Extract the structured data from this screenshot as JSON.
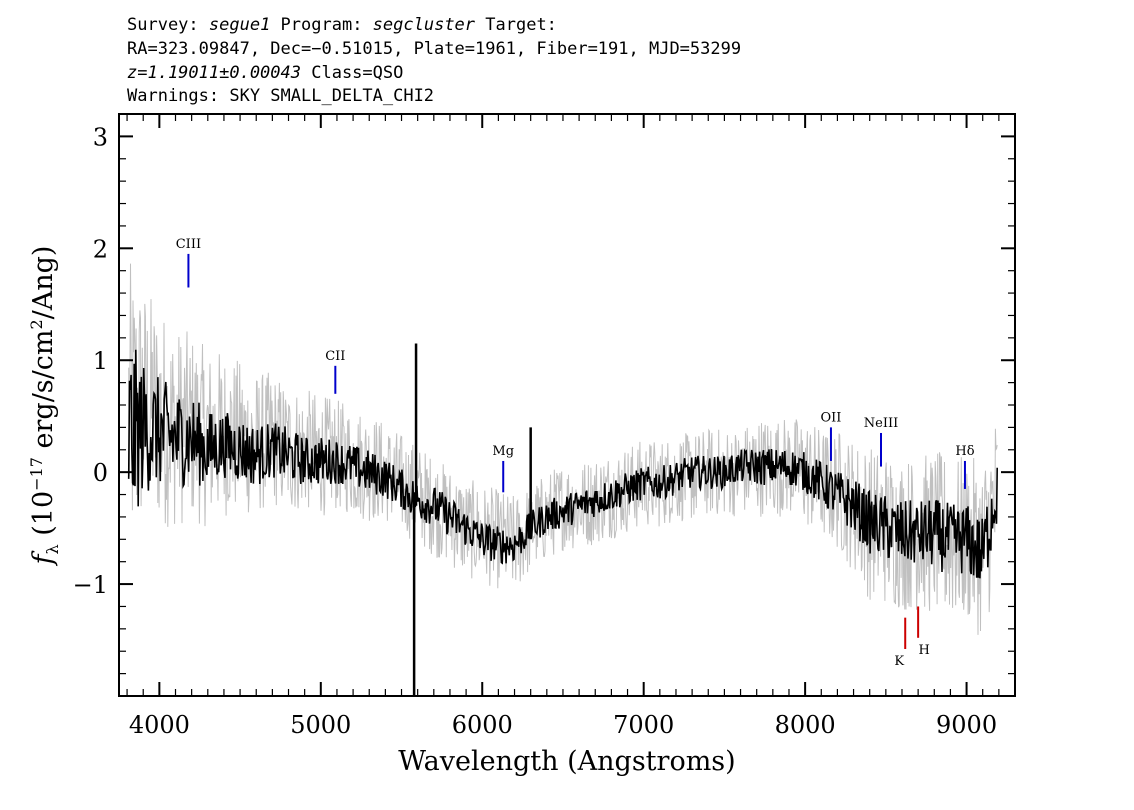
{
  "header": {
    "line1_a": "Survey: ",
    "survey": "segue1",
    "line1_b": " Program: ",
    "program": "segcluster",
    "line1_c": " Target:",
    "line2": "RA=323.09847, Dec=−0.51015, Plate=1961, Fiber=191, MJD=53299",
    "redshift": "z=1.19011±0.00043",
    "class_text": " Class=QSO",
    "warnings": "Warnings: SKY SMALL_DELTA_CHI2"
  },
  "chart_data": {
    "type": "line",
    "title": "",
    "xlabel": "Wavelength (Angstroms)",
    "ylabel_parts": [
      "f",
      "λ",
      " (10",
      "−17",
      " erg/s/cm",
      "2",
      "/Ang)"
    ],
    "xlim": [
      3750,
      9300
    ],
    "ylim": [
      -2.0,
      3.2
    ],
    "xticks": [
      4000,
      5000,
      6000,
      7000,
      8000,
      9000
    ],
    "xtick_labels": [
      "4000",
      "5000",
      "6000",
      "7000",
      "8000",
      "9000"
    ],
    "yticks": [
      -1,
      0,
      1,
      2,
      3
    ],
    "ytick_labels": [
      "−1",
      "0",
      "1",
      "2",
      "3"
    ],
    "series": [
      {
        "color": "#c0c0c0",
        "x": [
          3810,
          3900,
          4000,
          4100,
          4200,
          4300,
          4400,
          4500,
          4600,
          4700,
          4800,
          4900,
          5000,
          5100,
          5200,
          5300,
          5400,
          5500,
          5600,
          5700,
          5800,
          5900,
          6000,
          6100,
          6200,
          6300,
          6400,
          6500,
          6600,
          6700,
          6800,
          6900,
          7000,
          7100,
          7200,
          7300,
          7400,
          7500,
          7600,
          7700,
          7800,
          7900,
          8000,
          8100,
          8200,
          8300,
          8400,
          8500,
          8600,
          8700,
          8800,
          8900,
          9000,
          9100,
          9190
        ],
        "values": [
          0.5,
          0.6,
          0.5,
          0.4,
          0.4,
          0.3,
          0.35,
          0.3,
          0.25,
          0.3,
          0.2,
          0.2,
          0.15,
          0.15,
          0.1,
          0.05,
          0.0,
          -0.1,
          -0.2,
          -0.3,
          -0.4,
          -0.5,
          -0.55,
          -0.6,
          -0.65,
          -0.5,
          -0.4,
          -0.3,
          -0.3,
          -0.25,
          -0.2,
          -0.15,
          -0.1,
          -0.1,
          -0.05,
          -0.05,
          0.0,
          0.0,
          0.0,
          0.05,
          0.05,
          0.05,
          0.0,
          -0.1,
          -0.15,
          -0.3,
          -0.45,
          -0.5,
          -0.55,
          -0.55,
          -0.55,
          -0.6,
          -0.6,
          -0.7,
          -0.2
        ],
        "noise_amplitude": [
          1.4,
          1.1,
          1.0,
          0.9,
          0.85,
          0.8,
          0.75,
          0.7,
          0.65,
          0.6,
          0.6,
          0.55,
          0.55,
          0.5,
          0.5,
          0.5,
          0.45,
          0.45,
          0.45,
          0.45,
          0.45,
          0.45,
          0.45,
          0.45,
          0.45,
          0.4,
          0.4,
          0.4,
          0.4,
          0.4,
          0.4,
          0.4,
          0.4,
          0.4,
          0.4,
          0.4,
          0.4,
          0.4,
          0.4,
          0.45,
          0.45,
          0.45,
          0.5,
          0.5,
          0.55,
          0.6,
          0.7,
          0.7,
          0.7,
          0.7,
          0.75,
          0.75,
          0.75,
          0.8,
          0.8
        ]
      },
      {
        "color": "#000000",
        "x": [
          3810,
          3900,
          4000,
          4100,
          4200,
          4300,
          4400,
          4500,
          4600,
          4700,
          4800,
          4900,
          5000,
          5100,
          5200,
          5300,
          5400,
          5500,
          5600,
          5700,
          5800,
          5900,
          6000,
          6100,
          6200,
          6300,
          6400,
          6500,
          6600,
          6700,
          6800,
          6900,
          7000,
          7100,
          7200,
          7300,
          7400,
          7500,
          7600,
          7700,
          7800,
          7900,
          8000,
          8100,
          8200,
          8300,
          8400,
          8500,
          8600,
          8700,
          8800,
          8900,
          9000,
          9100,
          9190
        ],
        "values": [
          0.3,
          0.4,
          0.35,
          0.3,
          0.3,
          0.2,
          0.25,
          0.2,
          0.15,
          0.2,
          0.15,
          0.1,
          0.1,
          0.1,
          0.05,
          0.0,
          -0.05,
          -0.15,
          -0.25,
          -0.3,
          -0.4,
          -0.5,
          -0.6,
          -0.65,
          -0.65,
          -0.5,
          -0.4,
          -0.35,
          -0.3,
          -0.25,
          -0.2,
          -0.15,
          -0.1,
          -0.1,
          -0.05,
          0.0,
          0.0,
          0.0,
          0.05,
          0.05,
          0.05,
          0.05,
          0.0,
          -0.1,
          -0.2,
          -0.3,
          -0.45,
          -0.5,
          -0.55,
          -0.55,
          -0.55,
          -0.6,
          -0.6,
          -0.75,
          -0.1
        ],
        "noise_amplitude": [
          0.9,
          0.6,
          0.5,
          0.45,
          0.4,
          0.35,
          0.3,
          0.3,
          0.28,
          0.25,
          0.25,
          0.22,
          0.22,
          0.2,
          0.2,
          0.2,
          0.18,
          0.18,
          0.18,
          0.18,
          0.18,
          0.17,
          0.17,
          0.17,
          0.17,
          0.15,
          0.15,
          0.15,
          0.15,
          0.15,
          0.15,
          0.15,
          0.15,
          0.15,
          0.15,
          0.15,
          0.15,
          0.15,
          0.15,
          0.17,
          0.17,
          0.17,
          0.18,
          0.2,
          0.22,
          0.25,
          0.28,
          0.3,
          0.3,
          0.3,
          0.32,
          0.32,
          0.32,
          0.35,
          0.4
        ]
      }
    ],
    "spikes": [
      {
        "x": 5578,
        "y_from": -0.3,
        "y_to": -2.0,
        "color": "#000000"
      },
      {
        "x": 5590,
        "y_from": -0.3,
        "y_to": 1.15,
        "color": "#000000"
      },
      {
        "x": 6300,
        "y_from": -0.6,
        "y_to": 0.4,
        "color": "#000000"
      }
    ],
    "annotations": [
      {
        "label": "CIII",
        "x": 4180,
        "y_top": 1.95,
        "y_bottom": 1.65,
        "color": "#0000cc",
        "label_pos": "above"
      },
      {
        "label": "CII",
        "x": 5090,
        "y_top": 0.95,
        "y_bottom": 0.7,
        "color": "#0000cc",
        "label_pos": "above"
      },
      {
        "label": "Mg",
        "x": 6130,
        "y_top": 0.1,
        "y_bottom": -0.18,
        "color": "#0000cc",
        "label_pos": "above"
      },
      {
        "label": "OII",
        "x": 8160,
        "y_top": 0.4,
        "y_bottom": 0.1,
        "color": "#0000cc",
        "label_pos": "above"
      },
      {
        "label": "NeIII",
        "x": 8470,
        "y_top": 0.35,
        "y_bottom": 0.05,
        "color": "#0000cc",
        "label_pos": "above"
      },
      {
        "label": "Hδ",
        "x": 8990,
        "y_top": 0.1,
        "y_bottom": -0.15,
        "color": "#0000cc",
        "label_pos": "above"
      },
      {
        "label": "K",
        "x": 8620,
        "y_top": -1.3,
        "y_bottom": -1.58,
        "color": "#cc0000",
        "label_pos": "below"
      },
      {
        "label": "H",
        "x": 8700,
        "y_top": -1.2,
        "y_bottom": -1.48,
        "color": "#cc0000",
        "label_pos": "below"
      }
    ]
  }
}
